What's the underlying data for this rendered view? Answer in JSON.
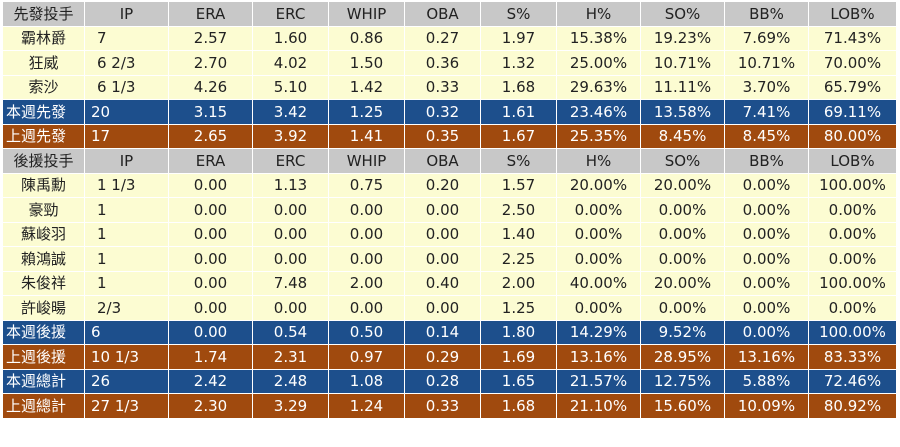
{
  "columns": [
    "IP",
    "ERA",
    "ERC",
    "WHIP",
    "OBA",
    "S%",
    "H%",
    "SO%",
    "BB%",
    "LOB%"
  ],
  "starters": {
    "header": "先發投手",
    "rows": [
      {
        "name": "霸林爵",
        "stats": [
          "7",
          "2.57",
          "1.60",
          "0.86",
          "0.27",
          "1.97",
          "15.38%",
          "19.23%",
          "7.69%",
          "71.43%"
        ]
      },
      {
        "name": "狂威",
        "stats": [
          "6 2/3",
          "2.70",
          "4.02",
          "1.50",
          "0.36",
          "1.32",
          "25.00%",
          "10.71%",
          "10.71%",
          "70.00%"
        ]
      },
      {
        "name": "索沙",
        "stats": [
          "6 1/3",
          "4.26",
          "5.10",
          "1.42",
          "0.33",
          "1.68",
          "29.63%",
          "11.11%",
          "3.70%",
          "65.79%"
        ]
      }
    ],
    "this_week": {
      "label": "本週先發",
      "stats": [
        "20",
        "3.15",
        "3.42",
        "1.25",
        "0.32",
        "1.61",
        "23.46%",
        "13.58%",
        "7.41%",
        "69.11%"
      ]
    },
    "last_week": {
      "label": "上週先發",
      "stats": [
        "17",
        "2.65",
        "3.92",
        "1.41",
        "0.35",
        "1.67",
        "25.35%",
        "8.45%",
        "8.45%",
        "80.00%"
      ]
    }
  },
  "relievers": {
    "header": "後援投手",
    "rows": [
      {
        "name": "陳禹勳",
        "stats": [
          "1 1/3",
          "0.00",
          "1.13",
          "0.75",
          "0.20",
          "1.57",
          "20.00%",
          "20.00%",
          "0.00%",
          "100.00%"
        ]
      },
      {
        "name": "豪勁",
        "stats": [
          "1",
          "0.00",
          "0.00",
          "0.00",
          "0.00",
          "2.50",
          "0.00%",
          "0.00%",
          "0.00%",
          "0.00%"
        ]
      },
      {
        "name": "蘇峻羽",
        "stats": [
          "1",
          "0.00",
          "0.00",
          "0.00",
          "0.00",
          "1.40",
          "0.00%",
          "0.00%",
          "0.00%",
          "0.00%"
        ]
      },
      {
        "name": "賴鴻誠",
        "stats": [
          "1",
          "0.00",
          "0.00",
          "0.00",
          "0.00",
          "2.25",
          "0.00%",
          "0.00%",
          "0.00%",
          "0.00%"
        ]
      },
      {
        "name": "朱俊祥",
        "stats": [
          "1",
          "0.00",
          "7.48",
          "2.00",
          "0.40",
          "2.00",
          "40.00%",
          "20.00%",
          "0.00%",
          "100.00%"
        ]
      },
      {
        "name": "許峻暘",
        "stats": [
          "2/3",
          "0.00",
          "0.00",
          "0.00",
          "0.00",
          "1.25",
          "0.00%",
          "0.00%",
          "0.00%",
          "0.00%"
        ]
      }
    ],
    "this_week": {
      "label": "本週後援",
      "stats": [
        "6",
        "0.00",
        "0.54",
        "0.50",
        "0.14",
        "1.80",
        "14.29%",
        "9.52%",
        "0.00%",
        "100.00%"
      ]
    },
    "last_week": {
      "label": "上週後援",
      "stats": [
        "10 1/3",
        "1.74",
        "2.31",
        "0.97",
        "0.29",
        "1.69",
        "13.16%",
        "28.95%",
        "13.16%",
        "83.33%"
      ]
    }
  },
  "totals": {
    "this_week": {
      "label": "本週總計",
      "stats": [
        "26",
        "2.42",
        "2.48",
        "1.08",
        "0.28",
        "1.65",
        "21.57%",
        "12.75%",
        "5.88%",
        "72.46%"
      ]
    },
    "last_week": {
      "label": "上週總計",
      "stats": [
        "27 1/3",
        "2.30",
        "3.29",
        "1.24",
        "0.33",
        "1.68",
        "21.10%",
        "15.60%",
        "10.09%",
        "80.92%"
      ]
    }
  }
}
